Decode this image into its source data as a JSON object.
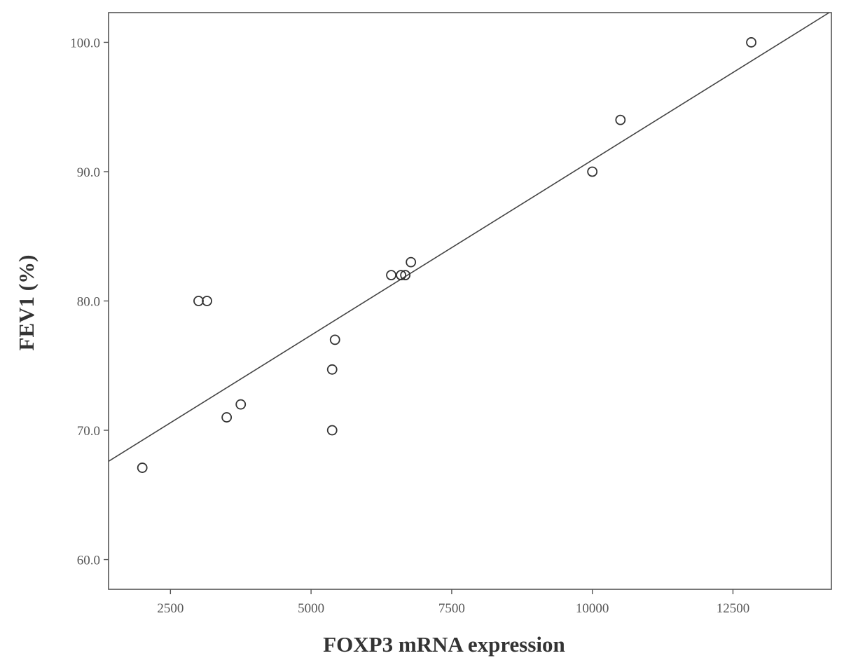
{
  "chart_data": {
    "type": "scatter",
    "xlabel": "FOXP3 mRNA expression",
    "ylabel": "FEV1 (%)",
    "xlim": [
      1400,
      14250
    ],
    "ylim": [
      57.7,
      102.3
    ],
    "xticks": [
      2500,
      5000,
      7500,
      10000,
      12500
    ],
    "xtick_labels": [
      "2500",
      "5000",
      "7500",
      "10000",
      "12500"
    ],
    "yticks": [
      60,
      70,
      80,
      90,
      100
    ],
    "ytick_labels": [
      "60.0",
      "70.0",
      "80.0",
      "90.0",
      "100.0"
    ],
    "grid": false,
    "points": [
      {
        "x": 2000,
        "y": 67.1
      },
      {
        "x": 3000,
        "y": 80.0
      },
      {
        "x": 3150,
        "y": 80.0
      },
      {
        "x": 3500,
        "y": 71.0
      },
      {
        "x": 3750,
        "y": 72.0
      },
      {
        "x": 5375,
        "y": 74.7
      },
      {
        "x": 5375,
        "y": 70.0
      },
      {
        "x": 5425,
        "y": 77.0
      },
      {
        "x": 6425,
        "y": 82.0
      },
      {
        "x": 6600,
        "y": 82.0
      },
      {
        "x": 6675,
        "y": 82.0
      },
      {
        "x": 6775,
        "y": 83.0
      },
      {
        "x": 10000,
        "y": 90.0
      },
      {
        "x": 10500,
        "y": 94.0
      },
      {
        "x": 12825,
        "y": 100.0
      }
    ],
    "fit_line": {
      "type": "linear",
      "x": [
        1400,
        14210
      ],
      "y": [
        67.6,
        102.3
      ]
    }
  }
}
